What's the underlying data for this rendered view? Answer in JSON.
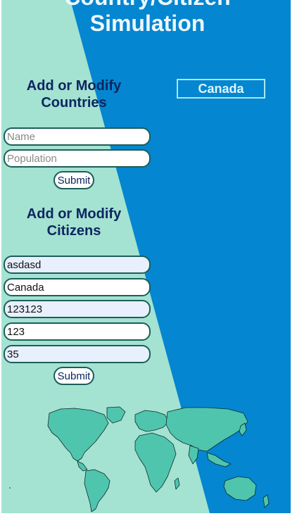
{
  "header": {
    "title_line_1": "Country/Citizen",
    "title_line_2": "Simulation"
  },
  "countries_form": {
    "heading_line_1": "Add or Modify",
    "heading_line_2": "Countries",
    "name_placeholder": "Name",
    "population_placeholder": "Population",
    "submit_label": "Submit"
  },
  "citizens_form": {
    "heading_line_1": "Add or Modify",
    "heading_line_2": "Citizens",
    "fields": [
      "asdasd",
      "Canada",
      "123123",
      "123",
      "35"
    ],
    "submit_label": "Submit"
  },
  "country_list": {
    "items": [
      "Canada"
    ]
  },
  "colors": {
    "left_panel": "#a4e2d1",
    "right_panel": "#0486d0",
    "heading_text": "#0c2661",
    "land": "#4fc5ad",
    "land_outline": "#0e2b2b"
  },
  "icons": {
    "map": "world-map-illustration"
  }
}
